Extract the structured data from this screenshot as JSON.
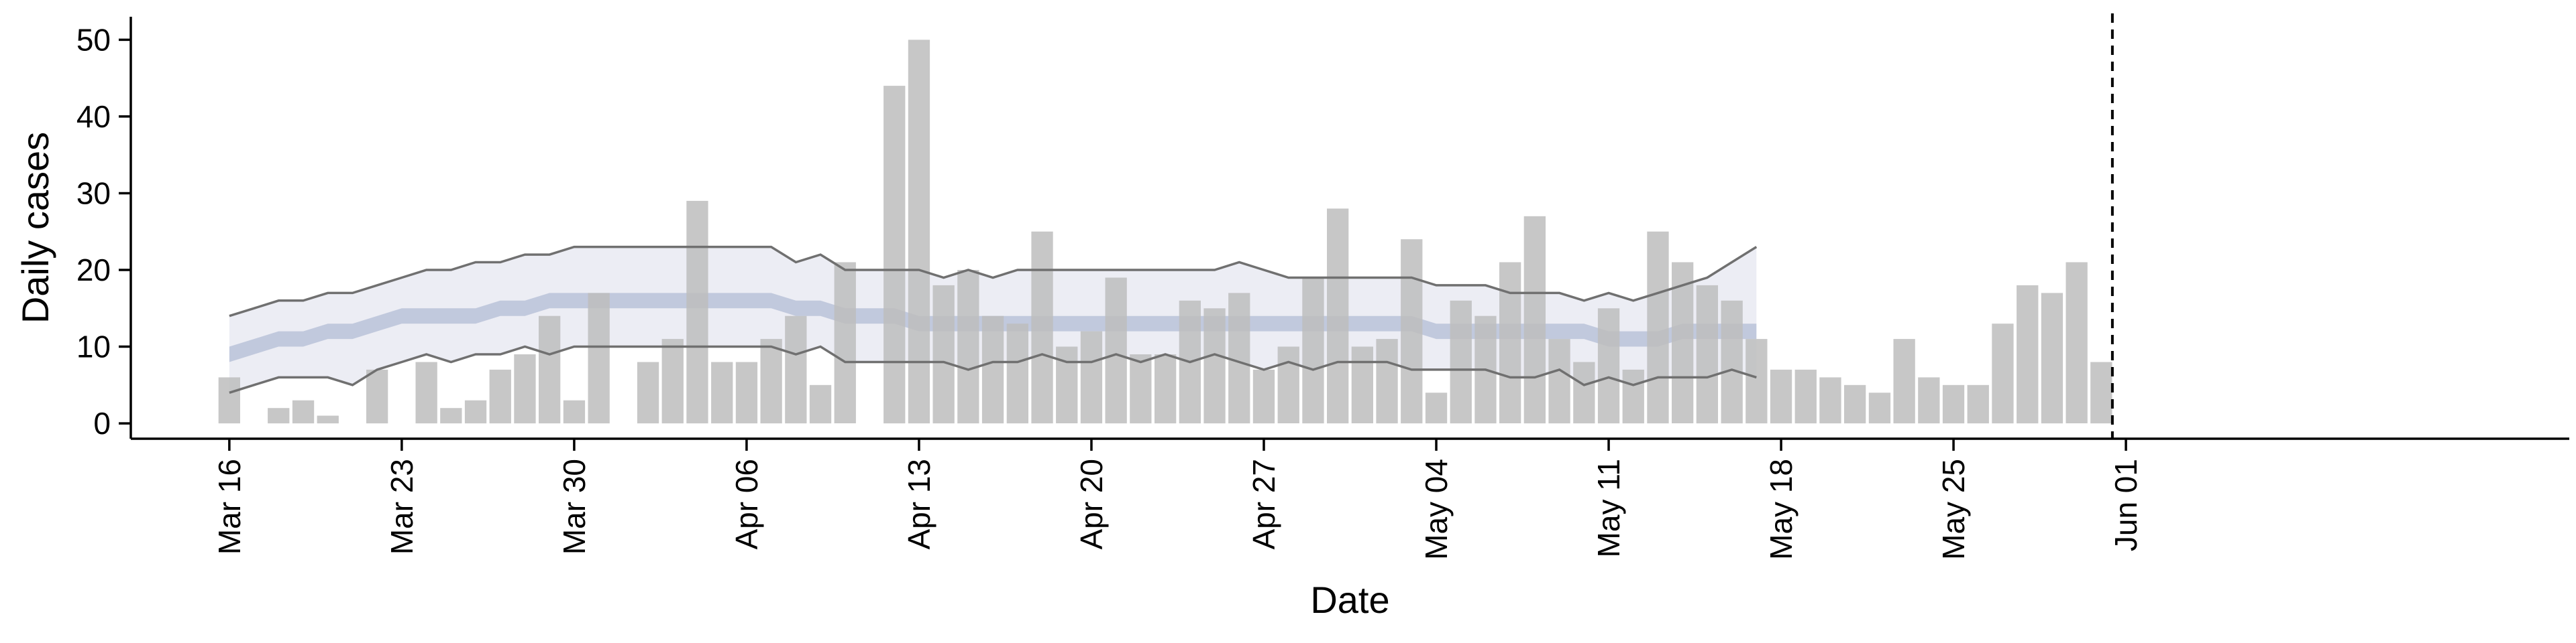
{
  "chart_data": {
    "type": "bar",
    "title": "",
    "xlabel": "Date",
    "ylabel": "Daily cases",
    "ylim": [
      -2,
      53
    ],
    "yticks": [
      0,
      10,
      20,
      30,
      40,
      50
    ],
    "xlim": [
      "2020-03-16",
      "2020-06-01"
    ],
    "xticks": [
      {
        "date": "2020-03-16",
        "label": "Mar 16"
      },
      {
        "date": "2020-03-23",
        "label": "Mar 23"
      },
      {
        "date": "2020-03-30",
        "label": "Mar 30"
      },
      {
        "date": "2020-04-06",
        "label": "Apr 06"
      },
      {
        "date": "2020-04-13",
        "label": "Apr 13"
      },
      {
        "date": "2020-04-20",
        "label": "Apr 20"
      },
      {
        "date": "2020-04-27",
        "label": "Apr 27"
      },
      {
        "date": "2020-05-04",
        "label": "May 04"
      },
      {
        "date": "2020-05-11",
        "label": "May 11"
      },
      {
        "date": "2020-05-18",
        "label": "May 18"
      },
      {
        "date": "2020-05-25",
        "label": "May 25"
      },
      {
        "date": "2020-06-01",
        "label": "Jun 01"
      }
    ],
    "grid": false,
    "legend": "none",
    "bars": {
      "color": "#bdbdbd",
      "dates": [
        "2020-03-16",
        "2020-03-17",
        "2020-03-18",
        "2020-03-19",
        "2020-03-20",
        "2020-03-21",
        "2020-03-22",
        "2020-03-23",
        "2020-03-24",
        "2020-03-25",
        "2020-03-26",
        "2020-03-27",
        "2020-03-28",
        "2020-03-29",
        "2020-03-30",
        "2020-03-31",
        "2020-04-01",
        "2020-04-02",
        "2020-04-03",
        "2020-04-04",
        "2020-04-05",
        "2020-04-06",
        "2020-04-07",
        "2020-04-08",
        "2020-04-09",
        "2020-04-10",
        "2020-04-11",
        "2020-04-12",
        "2020-04-13",
        "2020-04-14",
        "2020-04-15",
        "2020-04-16",
        "2020-04-17",
        "2020-04-18",
        "2020-04-19",
        "2020-04-20",
        "2020-04-21",
        "2020-04-22",
        "2020-04-23",
        "2020-04-24",
        "2020-04-25",
        "2020-04-26",
        "2020-04-27",
        "2020-04-28",
        "2020-04-29",
        "2020-04-30",
        "2020-05-01",
        "2020-05-02",
        "2020-05-03",
        "2020-05-04",
        "2020-05-05",
        "2020-05-06",
        "2020-05-07",
        "2020-05-08",
        "2020-05-09",
        "2020-05-10",
        "2020-05-11",
        "2020-05-12",
        "2020-05-13",
        "2020-05-14",
        "2020-05-15",
        "2020-05-16",
        "2020-05-17",
        "2020-05-18",
        "2020-05-19",
        "2020-05-20",
        "2020-05-21",
        "2020-05-22",
        "2020-05-23",
        "2020-05-24",
        "2020-05-25",
        "2020-05-26",
        "2020-05-27",
        "2020-05-28",
        "2020-05-29",
        "2020-05-30",
        "2020-05-31"
      ],
      "values": [
        6,
        0,
        2,
        3,
        1,
        0,
        7,
        0,
        8,
        2,
        3,
        7,
        9,
        14,
        3,
        17,
        0,
        8,
        11,
        29,
        8,
        8,
        11,
        14,
        5,
        21,
        0,
        44,
        50,
        18,
        20,
        14,
        13,
        25,
        10,
        12,
        19,
        9,
        9,
        16,
        15,
        17,
        7,
        10,
        19,
        28,
        10,
        11,
        24,
        4,
        16,
        14,
        21,
        27,
        11,
        8,
        15,
        7,
        25,
        21,
        18,
        16,
        11,
        7,
        7,
        6,
        5,
        4,
        11,
        6,
        5,
        5,
        13,
        18,
        17,
        21,
        8
      ]
    },
    "bands": {
      "dates": [
        "2020-03-16",
        "2020-03-17",
        "2020-03-18",
        "2020-03-19",
        "2020-03-20",
        "2020-03-21",
        "2020-03-22",
        "2020-03-23",
        "2020-03-24",
        "2020-03-25",
        "2020-03-26",
        "2020-03-27",
        "2020-03-28",
        "2020-03-29",
        "2020-03-30",
        "2020-03-31",
        "2020-04-01",
        "2020-04-02",
        "2020-04-03",
        "2020-04-04",
        "2020-04-05",
        "2020-04-06",
        "2020-04-07",
        "2020-04-08",
        "2020-04-09",
        "2020-04-10",
        "2020-04-11",
        "2020-04-12",
        "2020-04-13",
        "2020-04-14",
        "2020-04-15",
        "2020-04-16",
        "2020-04-17",
        "2020-04-18",
        "2020-04-19",
        "2020-04-20",
        "2020-04-21",
        "2020-04-22",
        "2020-04-23",
        "2020-04-24",
        "2020-04-25",
        "2020-04-26",
        "2020-04-27",
        "2020-04-28",
        "2020-04-29",
        "2020-04-30",
        "2020-05-01",
        "2020-05-02",
        "2020-05-03",
        "2020-05-04",
        "2020-05-05",
        "2020-05-06",
        "2020-05-07",
        "2020-05-08",
        "2020-05-09",
        "2020-05-10",
        "2020-05-11",
        "2020-05-12",
        "2020-05-13",
        "2020-05-14",
        "2020-05-15",
        "2020-05-16",
        "2020-05-17"
      ],
      "outer_lower": [
        4,
        5,
        6,
        6,
        6,
        5,
        7,
        8,
        9,
        8,
        9,
        9,
        10,
        9,
        10,
        10,
        10,
        10,
        10,
        10,
        10,
        10,
        10,
        9,
        10,
        8,
        8,
        8,
        8,
        8,
        7,
        8,
        8,
        9,
        8,
        8,
        9,
        8,
        9,
        8,
        9,
        8,
        7,
        8,
        7,
        8,
        8,
        8,
        7,
        7,
        7,
        7,
        6,
        6,
        7,
        5,
        6,
        5,
        6,
        6,
        6,
        7,
        6
      ],
      "outer_upper": [
        14,
        15,
        16,
        16,
        17,
        17,
        18,
        19,
        20,
        20,
        21,
        21,
        22,
        22,
        23,
        23,
        23,
        23,
        23,
        23,
        23,
        23,
        23,
        21,
        22,
        20,
        20,
        20,
        20,
        19,
        20,
        19,
        20,
        20,
        20,
        20,
        20,
        20,
        20,
        20,
        20,
        21,
        20,
        19,
        19,
        19,
        19,
        19,
        19,
        18,
        18,
        18,
        17,
        17,
        17,
        16,
        17,
        16,
        17,
        18,
        19,
        21,
        23
      ],
      "inner_lower": [
        8,
        9,
        10,
        10,
        11,
        11,
        12,
        13,
        13,
        13,
        13,
        14,
        14,
        15,
        15,
        15,
        15,
        15,
        15,
        15,
        15,
        15,
        15,
        14,
        14,
        13,
        13,
        13,
        12,
        12,
        12,
        12,
        12,
        12,
        12,
        12,
        12,
        12,
        12,
        12,
        12,
        12,
        12,
        12,
        12,
        12,
        12,
        12,
        12,
        11,
        11,
        11,
        11,
        11,
        11,
        11,
        10,
        10,
        10,
        11,
        11,
        11,
        11
      ],
      "inner_upper": [
        10,
        11,
        12,
        12,
        13,
        13,
        14,
        15,
        15,
        15,
        15,
        16,
        16,
        17,
        17,
        17,
        17,
        17,
        17,
        17,
        17,
        17,
        17,
        16,
        16,
        15,
        15,
        15,
        14,
        14,
        14,
        14,
        14,
        14,
        14,
        14,
        14,
        14,
        14,
        14,
        14,
        14,
        14,
        14,
        14,
        14,
        14,
        14,
        14,
        13,
        13,
        13,
        13,
        13,
        13,
        13,
        12,
        12,
        12,
        13,
        13,
        13,
        13
      ],
      "outer_color": "#dfe1ec",
      "inner_color": "#8d9dc0",
      "line_color": "#707070"
    },
    "vline": {
      "date": "2020-05-31",
      "style": "dashed",
      "color": "#000000"
    }
  }
}
